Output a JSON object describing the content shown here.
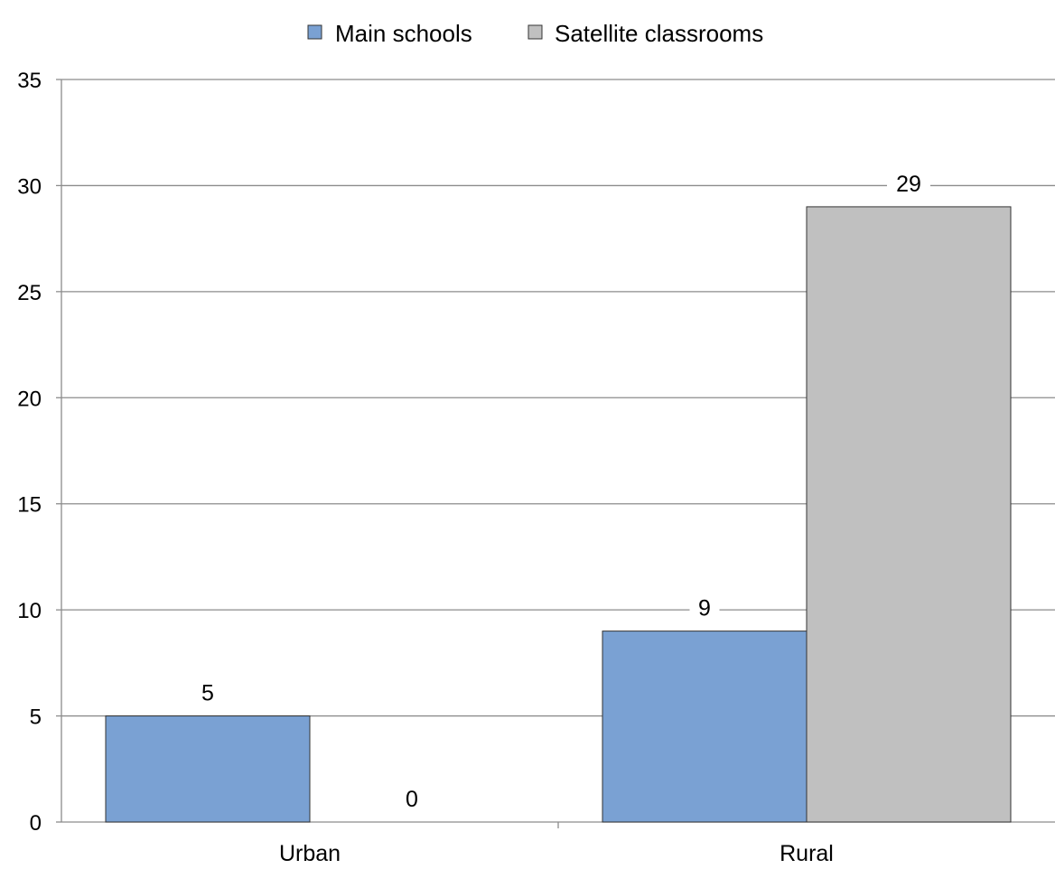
{
  "chart_data": {
    "type": "bar",
    "title": "",
    "xlabel": "",
    "ylabel": "",
    "categories": [
      "Urban",
      "Rural"
    ],
    "series": [
      {
        "name": "Main schools",
        "values": [
          5,
          9
        ],
        "color": "#7aa1d3"
      },
      {
        "name": "Satellite classrooms",
        "values": [
          0,
          29
        ],
        "color": "#c0c0c0"
      }
    ],
    "ylim": [
      0,
      35
    ],
    "yticks": [
      0,
      5,
      10,
      15,
      20,
      25,
      30,
      35
    ],
    "grid": true,
    "legend_position": "top-center",
    "data_labels": true
  }
}
